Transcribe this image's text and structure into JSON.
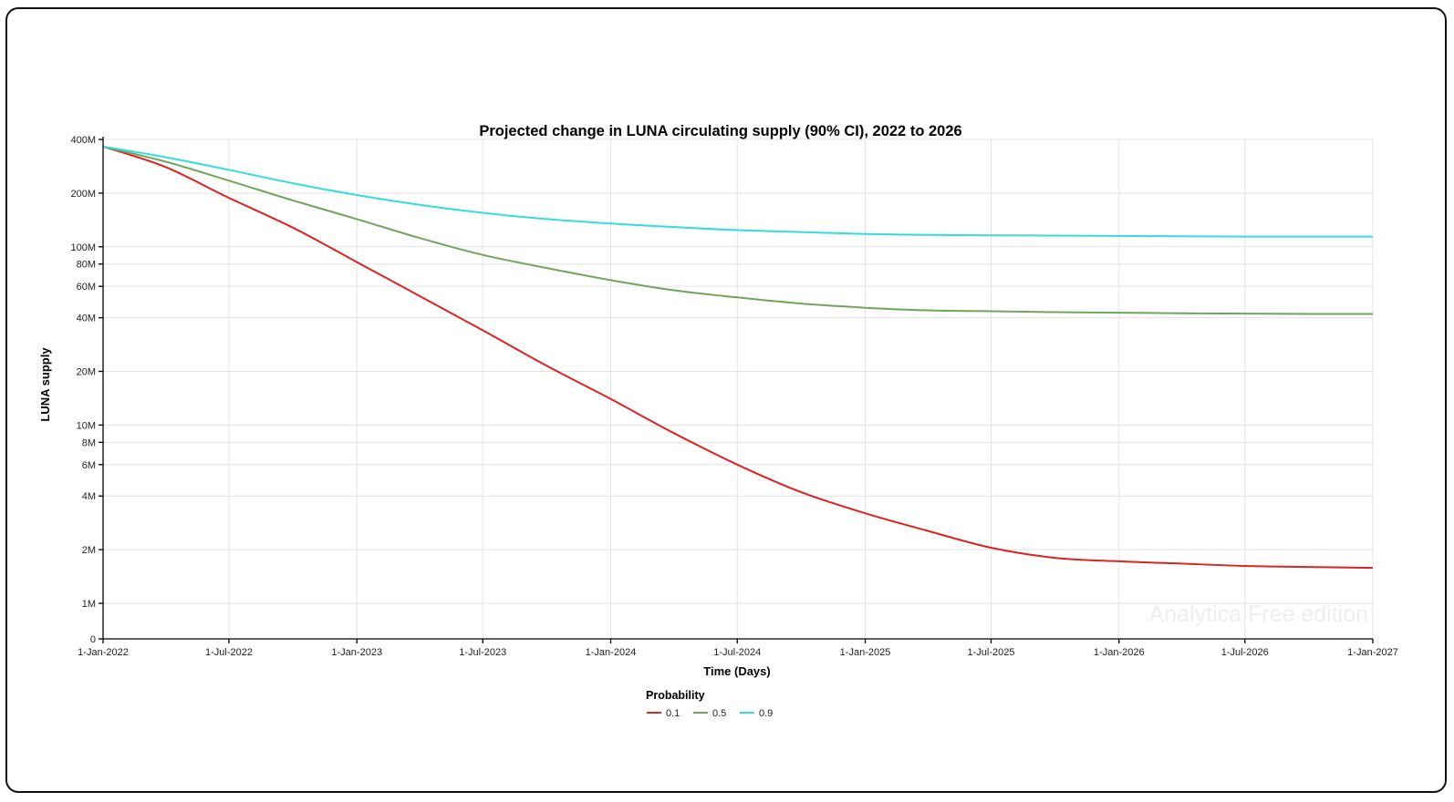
{
  "chart_data": {
    "type": "line",
    "title": "Projected change in LUNA circulating supply (90% CI), 2022 to 2026",
    "xlabel": "Time (Days)",
    "ylabel": "LUNA supply",
    "y_scale": "log",
    "xlim": [
      "2022-01-01",
      "2027-01-01"
    ],
    "x_ticks": [
      {
        "date": "2022-01-01",
        "label": "1-Jan-2022"
      },
      {
        "date": "2022-07-01",
        "label": "1-Jul-2022"
      },
      {
        "date": "2023-01-01",
        "label": "1-Jan-2023"
      },
      {
        "date": "2023-07-01",
        "label": "1-Jul-2023"
      },
      {
        "date": "2024-01-01",
        "label": "1-Jan-2024"
      },
      {
        "date": "2024-07-01",
        "label": "1-Jul-2024"
      },
      {
        "date": "2025-01-01",
        "label": "1-Jan-2025"
      },
      {
        "date": "2025-07-01",
        "label": "1-Jul-2025"
      },
      {
        "date": "2026-01-01",
        "label": "1-Jan-2026"
      },
      {
        "date": "2026-07-01",
        "label": "1-Jul-2026"
      },
      {
        "date": "2027-01-01",
        "label": "1-Jan-2027"
      }
    ],
    "y_ticks": [
      {
        "value": 0,
        "label": "0"
      },
      {
        "value": 1000000,
        "label": "1M"
      },
      {
        "value": 2000000,
        "label": "2M"
      },
      {
        "value": 4000000,
        "label": "4M"
      },
      {
        "value": 6000000,
        "label": "6M"
      },
      {
        "value": 8000000,
        "label": "8M"
      },
      {
        "value": 10000000,
        "label": "10M"
      },
      {
        "value": 20000000,
        "label": "20M"
      },
      {
        "value": 40000000,
        "label": "40M"
      },
      {
        "value": 60000000,
        "label": "60M"
      },
      {
        "value": 80000000,
        "label": "80M"
      },
      {
        "value": 100000000,
        "label": "100M"
      },
      {
        "value": 200000000,
        "label": "200M"
      },
      {
        "value": 400000000,
        "label": "400M"
      }
    ],
    "grid": true,
    "legend": {
      "title": "Probability",
      "position": "bottom-center"
    },
    "series": [
      {
        "name": "0.1",
        "color": "#dd2222",
        "points": [
          [
            "2022-01-01",
            365000000
          ],
          [
            "2022-04-01",
            280000000
          ],
          [
            "2022-07-01",
            188000000
          ],
          [
            "2022-10-01",
            128000000
          ],
          [
            "2023-01-01",
            82000000
          ],
          [
            "2023-04-01",
            53000000
          ],
          [
            "2023-07-01",
            34000000
          ],
          [
            "2023-10-01",
            21500000
          ],
          [
            "2024-01-01",
            14000000
          ],
          [
            "2024-04-01",
            9000000
          ],
          [
            "2024-07-01",
            6000000
          ],
          [
            "2024-10-01",
            4200000
          ],
          [
            "2025-01-01",
            3200000
          ],
          [
            "2025-04-01",
            2550000
          ],
          [
            "2025-07-01",
            2050000
          ],
          [
            "2025-10-01",
            1800000
          ],
          [
            "2026-01-01",
            1720000
          ],
          [
            "2026-04-01",
            1670000
          ],
          [
            "2026-07-01",
            1620000
          ],
          [
            "2026-10-01",
            1600000
          ],
          [
            "2027-01-01",
            1580000
          ]
        ]
      },
      {
        "name": "0.5",
        "color": "#6fa65c",
        "points": [
          [
            "2022-01-01",
            365000000
          ],
          [
            "2022-04-01",
            300000000
          ],
          [
            "2022-07-01",
            235000000
          ],
          [
            "2022-10-01",
            182000000
          ],
          [
            "2023-01-01",
            143000000
          ],
          [
            "2023-04-01",
            112000000
          ],
          [
            "2023-07-01",
            90000000
          ],
          [
            "2023-10-01",
            76000000
          ],
          [
            "2024-01-01",
            65000000
          ],
          [
            "2024-04-01",
            57000000
          ],
          [
            "2024-07-01",
            52000000
          ],
          [
            "2024-10-01",
            48000000
          ],
          [
            "2025-01-01",
            45500000
          ],
          [
            "2025-04-01",
            44000000
          ],
          [
            "2025-07-01",
            43500000
          ],
          [
            "2025-10-01",
            43000000
          ],
          [
            "2026-01-01",
            42700000
          ],
          [
            "2026-04-01",
            42400000
          ],
          [
            "2026-07-01",
            42200000
          ],
          [
            "2026-10-01",
            42000000
          ],
          [
            "2027-01-01",
            42000000
          ]
        ]
      },
      {
        "name": "0.9",
        "color": "#33dddd",
        "points": [
          [
            "2022-01-01",
            365000000
          ],
          [
            "2022-04-01",
            318000000
          ],
          [
            "2022-07-01",
            270000000
          ],
          [
            "2022-10-01",
            227000000
          ],
          [
            "2023-01-01",
            195000000
          ],
          [
            "2023-04-01",
            172000000
          ],
          [
            "2023-07-01",
            155000000
          ],
          [
            "2023-10-01",
            143000000
          ],
          [
            "2024-01-01",
            135000000
          ],
          [
            "2024-04-01",
            129000000
          ],
          [
            "2024-07-01",
            124000000
          ],
          [
            "2024-10-01",
            121000000
          ],
          [
            "2025-01-01",
            118000000
          ],
          [
            "2025-04-01",
            116500000
          ],
          [
            "2025-07-01",
            116000000
          ],
          [
            "2025-10-01",
            115500000
          ],
          [
            "2026-01-01",
            115000000
          ],
          [
            "2026-04-01",
            114500000
          ],
          [
            "2026-07-01",
            114000000
          ],
          [
            "2026-10-01",
            114000000
          ],
          [
            "2027-01-01",
            114000000
          ]
        ]
      }
    ],
    "watermark": "Analytica Free edition"
  }
}
